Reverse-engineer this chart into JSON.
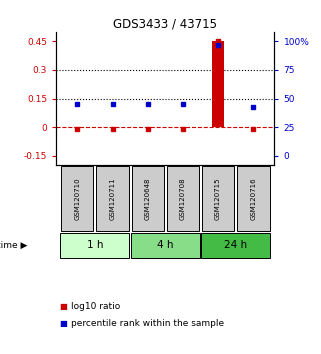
{
  "title": "GDS3433 / 43715",
  "samples": [
    "GSM120710",
    "GSM120711",
    "GSM120648",
    "GSM120708",
    "GSM120715",
    "GSM120716"
  ],
  "log10_ratio": [
    -0.01,
    -0.01,
    -0.01,
    -0.01,
    0.45,
    -0.01
  ],
  "percentile_rank_right": [
    45,
    45,
    45,
    45,
    97,
    43
  ],
  "left_yticks": [
    -0.15,
    0,
    0.15,
    0.3,
    0.45
  ],
  "right_yticks": [
    0,
    25,
    50,
    75,
    100
  ],
  "right_ytick_positions": [
    -0.15,
    0.0,
    0.15,
    0.3,
    0.45
  ],
  "dotted_line_y": [
    0.15,
    0.3
  ],
  "dashed_line_y": 0.0,
  "bar_color": "#cc0000",
  "dot_color_red": "#cc0000",
  "dot_color_blue": "#0000cc",
  "time_groups": [
    {
      "label": "1 h",
      "samples": [
        0,
        1
      ],
      "color": "#ccffcc"
    },
    {
      "label": "4 h",
      "samples": [
        2,
        3
      ],
      "color": "#88dd88"
    },
    {
      "label": "24 h",
      "samples": [
        4,
        5
      ],
      "color": "#44bb44"
    }
  ],
  "sample_box_color": "#cccccc",
  "legend_red": "log10 ratio",
  "legend_blue": "percentile rank within the sample",
  "bar_width": 0.35,
  "bar_sample_index": 4
}
